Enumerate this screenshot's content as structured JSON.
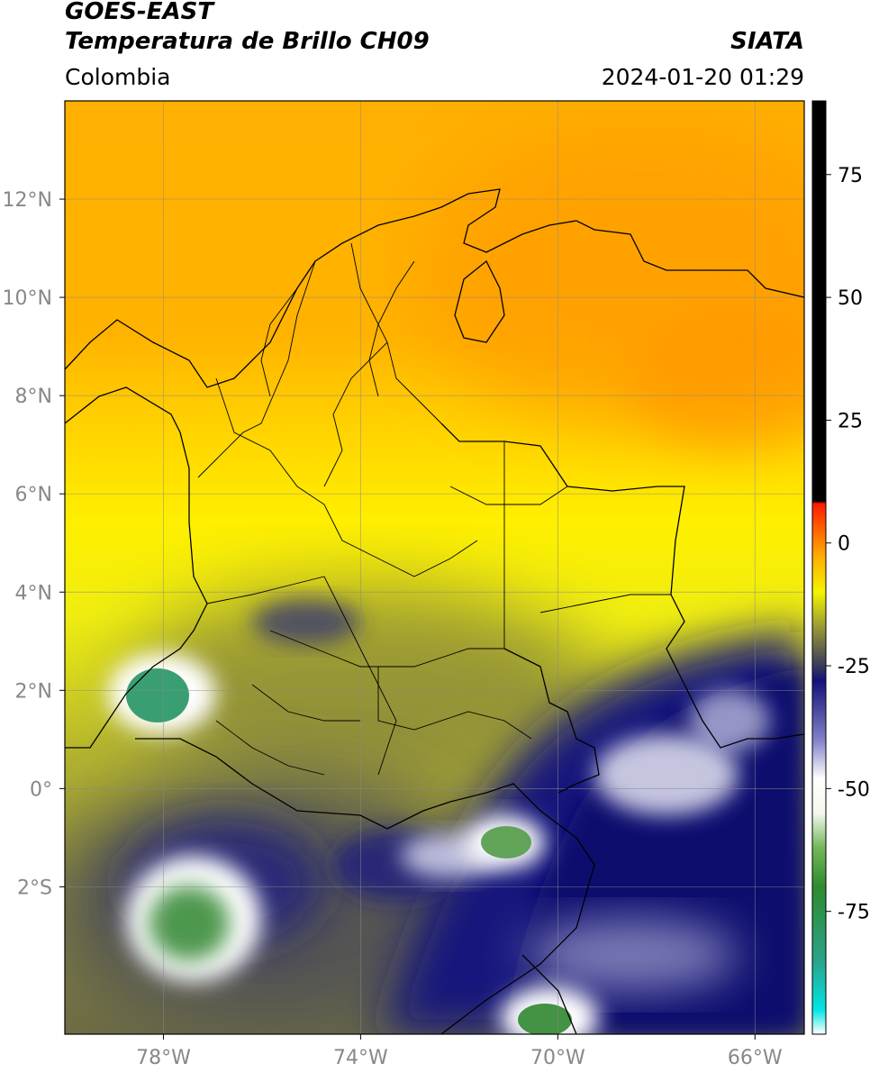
{
  "header": {
    "satellite": "GOES-EAST",
    "product": "Temperatura de Brillo CH09",
    "region": "Colombia",
    "agency": "SIATA",
    "timestamp": "2024-01-20 01:29"
  },
  "map": {
    "lon_range": [
      -80,
      -65
    ],
    "lat_range": [
      -5,
      14
    ],
    "lon_ticks": [
      {
        "value": -78,
        "label": "78°W"
      },
      {
        "value": -74,
        "label": "74°W"
      },
      {
        "value": -70,
        "label": "70°W"
      },
      {
        "value": -66,
        "label": "66°W"
      }
    ],
    "lat_ticks": [
      {
        "value": 12,
        "label": "12°N"
      },
      {
        "value": 10,
        "label": "10°N"
      },
      {
        "value": 8,
        "label": "8°N"
      },
      {
        "value": 6,
        "label": "6°N"
      },
      {
        "value": 4,
        "label": "4°N"
      },
      {
        "value": 2,
        "label": "2°N"
      },
      {
        "value": 0,
        "label": "0°"
      },
      {
        "value": -2,
        "label": "2°S"
      }
    ],
    "grid": true
  },
  "colorbar": {
    "range": [
      -100,
      90
    ],
    "ticks": [
      {
        "value": 75,
        "label": "75"
      },
      {
        "value": 50,
        "label": "50"
      },
      {
        "value": 25,
        "label": "25"
      },
      {
        "value": 0,
        "label": "0"
      },
      {
        "value": -25,
        "label": "-25"
      },
      {
        "value": -50,
        "label": "-50"
      },
      {
        "value": -75,
        "label": "-75"
      }
    ],
    "stops": [
      {
        "value": -100,
        "color": "#ffffff"
      },
      {
        "value": -95,
        "color": "#00e5e5"
      },
      {
        "value": -85,
        "color": "#2aa38a"
      },
      {
        "value": -70,
        "color": "#2e8b2e"
      },
      {
        "value": -62,
        "color": "#74b85a"
      },
      {
        "value": -55,
        "color": "#f4f8ec"
      },
      {
        "value": -48,
        "color": "#ffffff"
      },
      {
        "value": -40,
        "color": "#8080c8"
      },
      {
        "value": -28,
        "color": "#12127a"
      },
      {
        "value": -25,
        "color": "#3a3a5a"
      },
      {
        "value": -18,
        "color": "#8e8e3a"
      },
      {
        "value": -10,
        "color": "#f4f400"
      },
      {
        "value": -3,
        "color": "#ffb000"
      },
      {
        "value": 3,
        "color": "#ff6000"
      },
      {
        "value": 8,
        "color": "#ff1a00"
      },
      {
        "value": 8.5,
        "color": "#000000"
      },
      {
        "value": 90,
        "color": "#000000"
      }
    ]
  }
}
